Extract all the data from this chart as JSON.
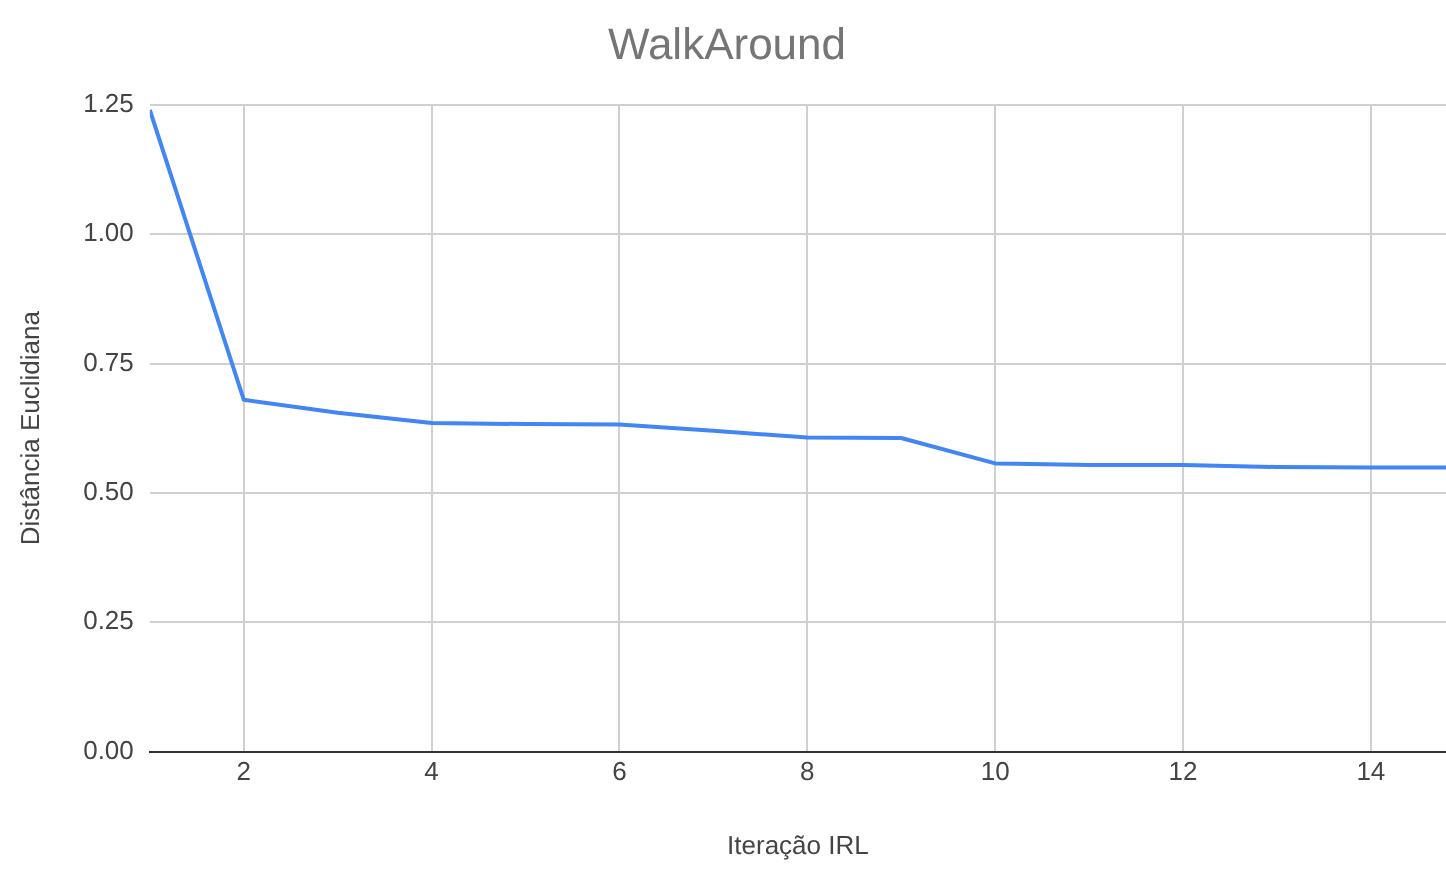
{
  "chart_data": {
    "type": "line",
    "title": "WalkAround",
    "xlabel": "Iteração IRL",
    "ylabel": "Distância Euclidiana",
    "x": [
      1,
      2,
      3,
      4,
      5,
      6,
      7,
      8,
      9,
      10,
      11,
      12,
      13,
      14,
      14.8
    ],
    "series": [
      {
        "color": "#4285f4",
        "values": [
          1.24,
          0.68,
          0.655,
          0.635,
          0.633,
          0.632,
          0.62,
          0.607,
          0.606,
          0.557,
          0.554,
          0.554,
          0.55,
          0.549,
          0.549
        ]
      }
    ],
    "xlim": [
      1,
      14.8
    ],
    "xticks": [
      2,
      4,
      6,
      8,
      10,
      12,
      14
    ],
    "ylim": [
      0,
      1.25
    ],
    "yticks": [
      {
        "value": 0,
        "label": "0.00"
      },
      0.25,
      {
        "value": 0.5,
        "label": "0.50"
      },
      0.75,
      {
        "value": 1,
        "label": "1.00"
      },
      1.25
    ],
    "grid": true,
    "legend": false,
    "marker": "none",
    "line_style": "solid"
  }
}
